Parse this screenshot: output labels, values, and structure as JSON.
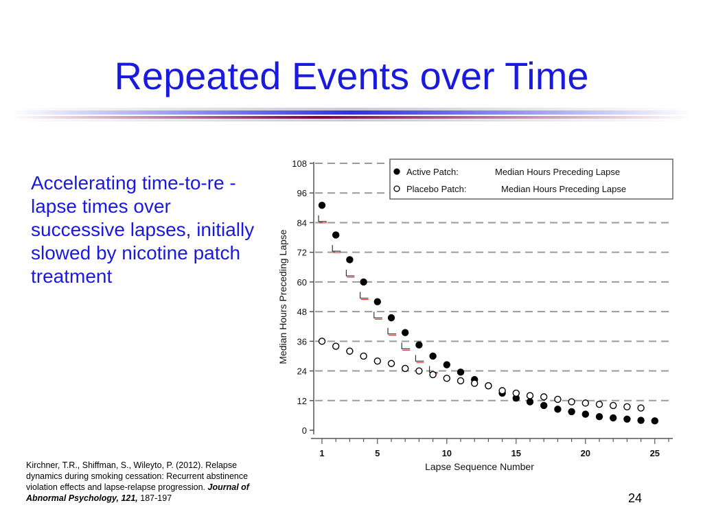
{
  "slide": {
    "title": "Repeated Events over Time",
    "bullet": "Accelerating time-to-re - lapse times over successive lapses, initially slowed by nicotine patch treatment",
    "citation": {
      "text": "Kirchner, T.R., Shiffman, S., Wileyto, P. (2012). Relapse dynamics during smoking cessation:  Recurrent abstinence violation effects and lapse-relapse progression.",
      "journal": "Journal of Abnormal Psychology, 121,",
      "pages": "187-197"
    },
    "page_number": "24",
    "colors": {
      "title": "#1a1adf",
      "accent_rule": "#800040"
    }
  },
  "chart_data": {
    "type": "scatter",
    "xlabel": "Lapse Sequence Number",
    "ylabel": "Median Hours Preceding Lapse",
    "xlim": [
      1,
      26
    ],
    "ylim": [
      0,
      108
    ],
    "x_ticks": [
      1,
      5,
      10,
      15,
      20,
      25
    ],
    "y_ticks": [
      0,
      12,
      24,
      36,
      48,
      60,
      72,
      84,
      96,
      108
    ],
    "grid": "horizontal dashed",
    "legend_position": "top-right",
    "series": [
      {
        "name": "Active Patch:",
        "legend_detail": "Median Hours Preceding Lapse",
        "marker": "filled-circle",
        "x": [
          1,
          2,
          3,
          4,
          5,
          6,
          7,
          8,
          9,
          10,
          11,
          12,
          13,
          14,
          15,
          16,
          17,
          18,
          19,
          20,
          21,
          22,
          23,
          24,
          25
        ],
        "values": [
          91,
          79,
          69,
          60,
          52,
          45.5,
          39.5,
          34.5,
          30,
          26.5,
          23.5,
          20.5,
          18,
          15,
          13,
          11.5,
          10,
          8.5,
          7.5,
          6.5,
          5.5,
          5,
          4.5,
          4,
          3.8
        ]
      },
      {
        "name": "Placebo Patch:",
        "legend_detail": "Median Hours Preceding Lapse",
        "marker": "hollow-circle",
        "x": [
          1,
          2,
          3,
          4,
          5,
          6,
          7,
          8,
          9,
          10,
          11,
          12,
          13,
          14,
          15,
          16,
          17,
          18,
          19,
          20,
          21,
          22,
          23,
          24
        ],
        "values": [
          36,
          34,
          32,
          30,
          28,
          27,
          25,
          24,
          22.5,
          21,
          20,
          19,
          18,
          16,
          15,
          14,
          13.5,
          12.5,
          11.5,
          11,
          10.5,
          10,
          9.5,
          9
        ]
      }
    ],
    "bracket_markers_after_x": [
      1,
      2,
      3,
      4,
      5,
      6,
      7,
      8,
      9
    ]
  }
}
